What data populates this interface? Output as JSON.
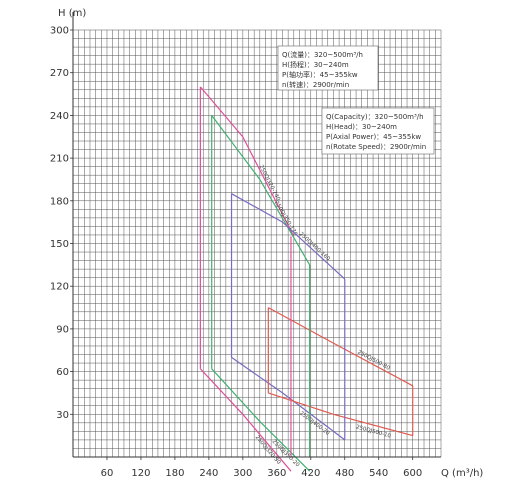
{
  "chart_data": {
    "type": "line",
    "title": "",
    "xlabel": "Q (m³/h)",
    "ylabel": "H (m)",
    "xlim": [
      0,
      650
    ],
    "ylim": [
      0,
      300
    ],
    "x_ticks": [
      60,
      120,
      180,
      240,
      300,
      360,
      420,
      480,
      540,
      600
    ],
    "y_ticks": [
      30,
      60,
      90,
      120,
      150,
      180,
      210,
      240,
      270,
      300
    ],
    "grid": true,
    "legend_cn": [
      "Q(流量)：320~500m³/h",
      "H(扬程)：30~240m",
      "P(轴功率)：45~355kw",
      "n(转速)：2900r/min"
    ],
    "legend_en": [
      "Q(Capacity)：320~500m³/h",
      "H(Head)：30~240m",
      "P(Axial Power)：45~355kw",
      "n(Rotate Speed)：2900r/min"
    ],
    "series": [
      {
        "name": "250QJ320-240",
        "color": "#e0509a",
        "top": [
          [
            225,
            260
          ],
          [
            300,
            225
          ],
          [
            390,
            155
          ]
        ],
        "bottom": [
          [
            225,
            62
          ],
          [
            300,
            30
          ],
          [
            385,
            -10
          ]
        ],
        "label_top": "250QJ320-240",
        "label_bottom": "250QJ320-30"
      },
      {
        "name": "250QJ350-170",
        "color": "#40b070",
        "top": [
          [
            245,
            240
          ],
          [
            330,
            195
          ],
          [
            418,
            135
          ]
        ],
        "bottom": [
          [
            245,
            62
          ],
          [
            330,
            25
          ],
          [
            418,
            -10
          ]
        ],
        "label_top": "250QJ350-170",
        "label_bottom": "250QJ350-20"
      },
      {
        "name": "250QJ400-160",
        "color": "#7a6ac0",
        "top": [
          [
            280,
            185
          ],
          [
            370,
            165
          ],
          [
            480,
            125
          ]
        ],
        "bottom": [
          [
            280,
            70
          ],
          [
            370,
            45
          ],
          [
            480,
            12
          ]
        ],
        "label_top": "250QJ400-160",
        "label_bottom": "250QJ400-20"
      },
      {
        "name": "250QJ500-80",
        "color": "#e05a50",
        "top": [
          [
            345,
            105
          ],
          [
            460,
            80
          ],
          [
            600,
            50
          ]
        ],
        "bottom": [
          [
            345,
            45
          ],
          [
            460,
            30
          ],
          [
            600,
            15
          ]
        ],
        "label_top": "250QJ500-80",
        "label_bottom": "250QJ500-10"
      }
    ],
    "verticals": [
      {
        "x": 385,
        "y": [
          -10,
          155
        ],
        "color": "#e0509a"
      },
      {
        "x": 418,
        "y": [
          -10,
          135
        ],
        "color": "#40b070"
      },
      {
        "x": 480,
        "y": [
          12,
          125
        ],
        "color": "#7a6ac0"
      },
      {
        "x": 600,
        "y": [
          15,
          50
        ],
        "color": "#e05a50"
      }
    ]
  }
}
